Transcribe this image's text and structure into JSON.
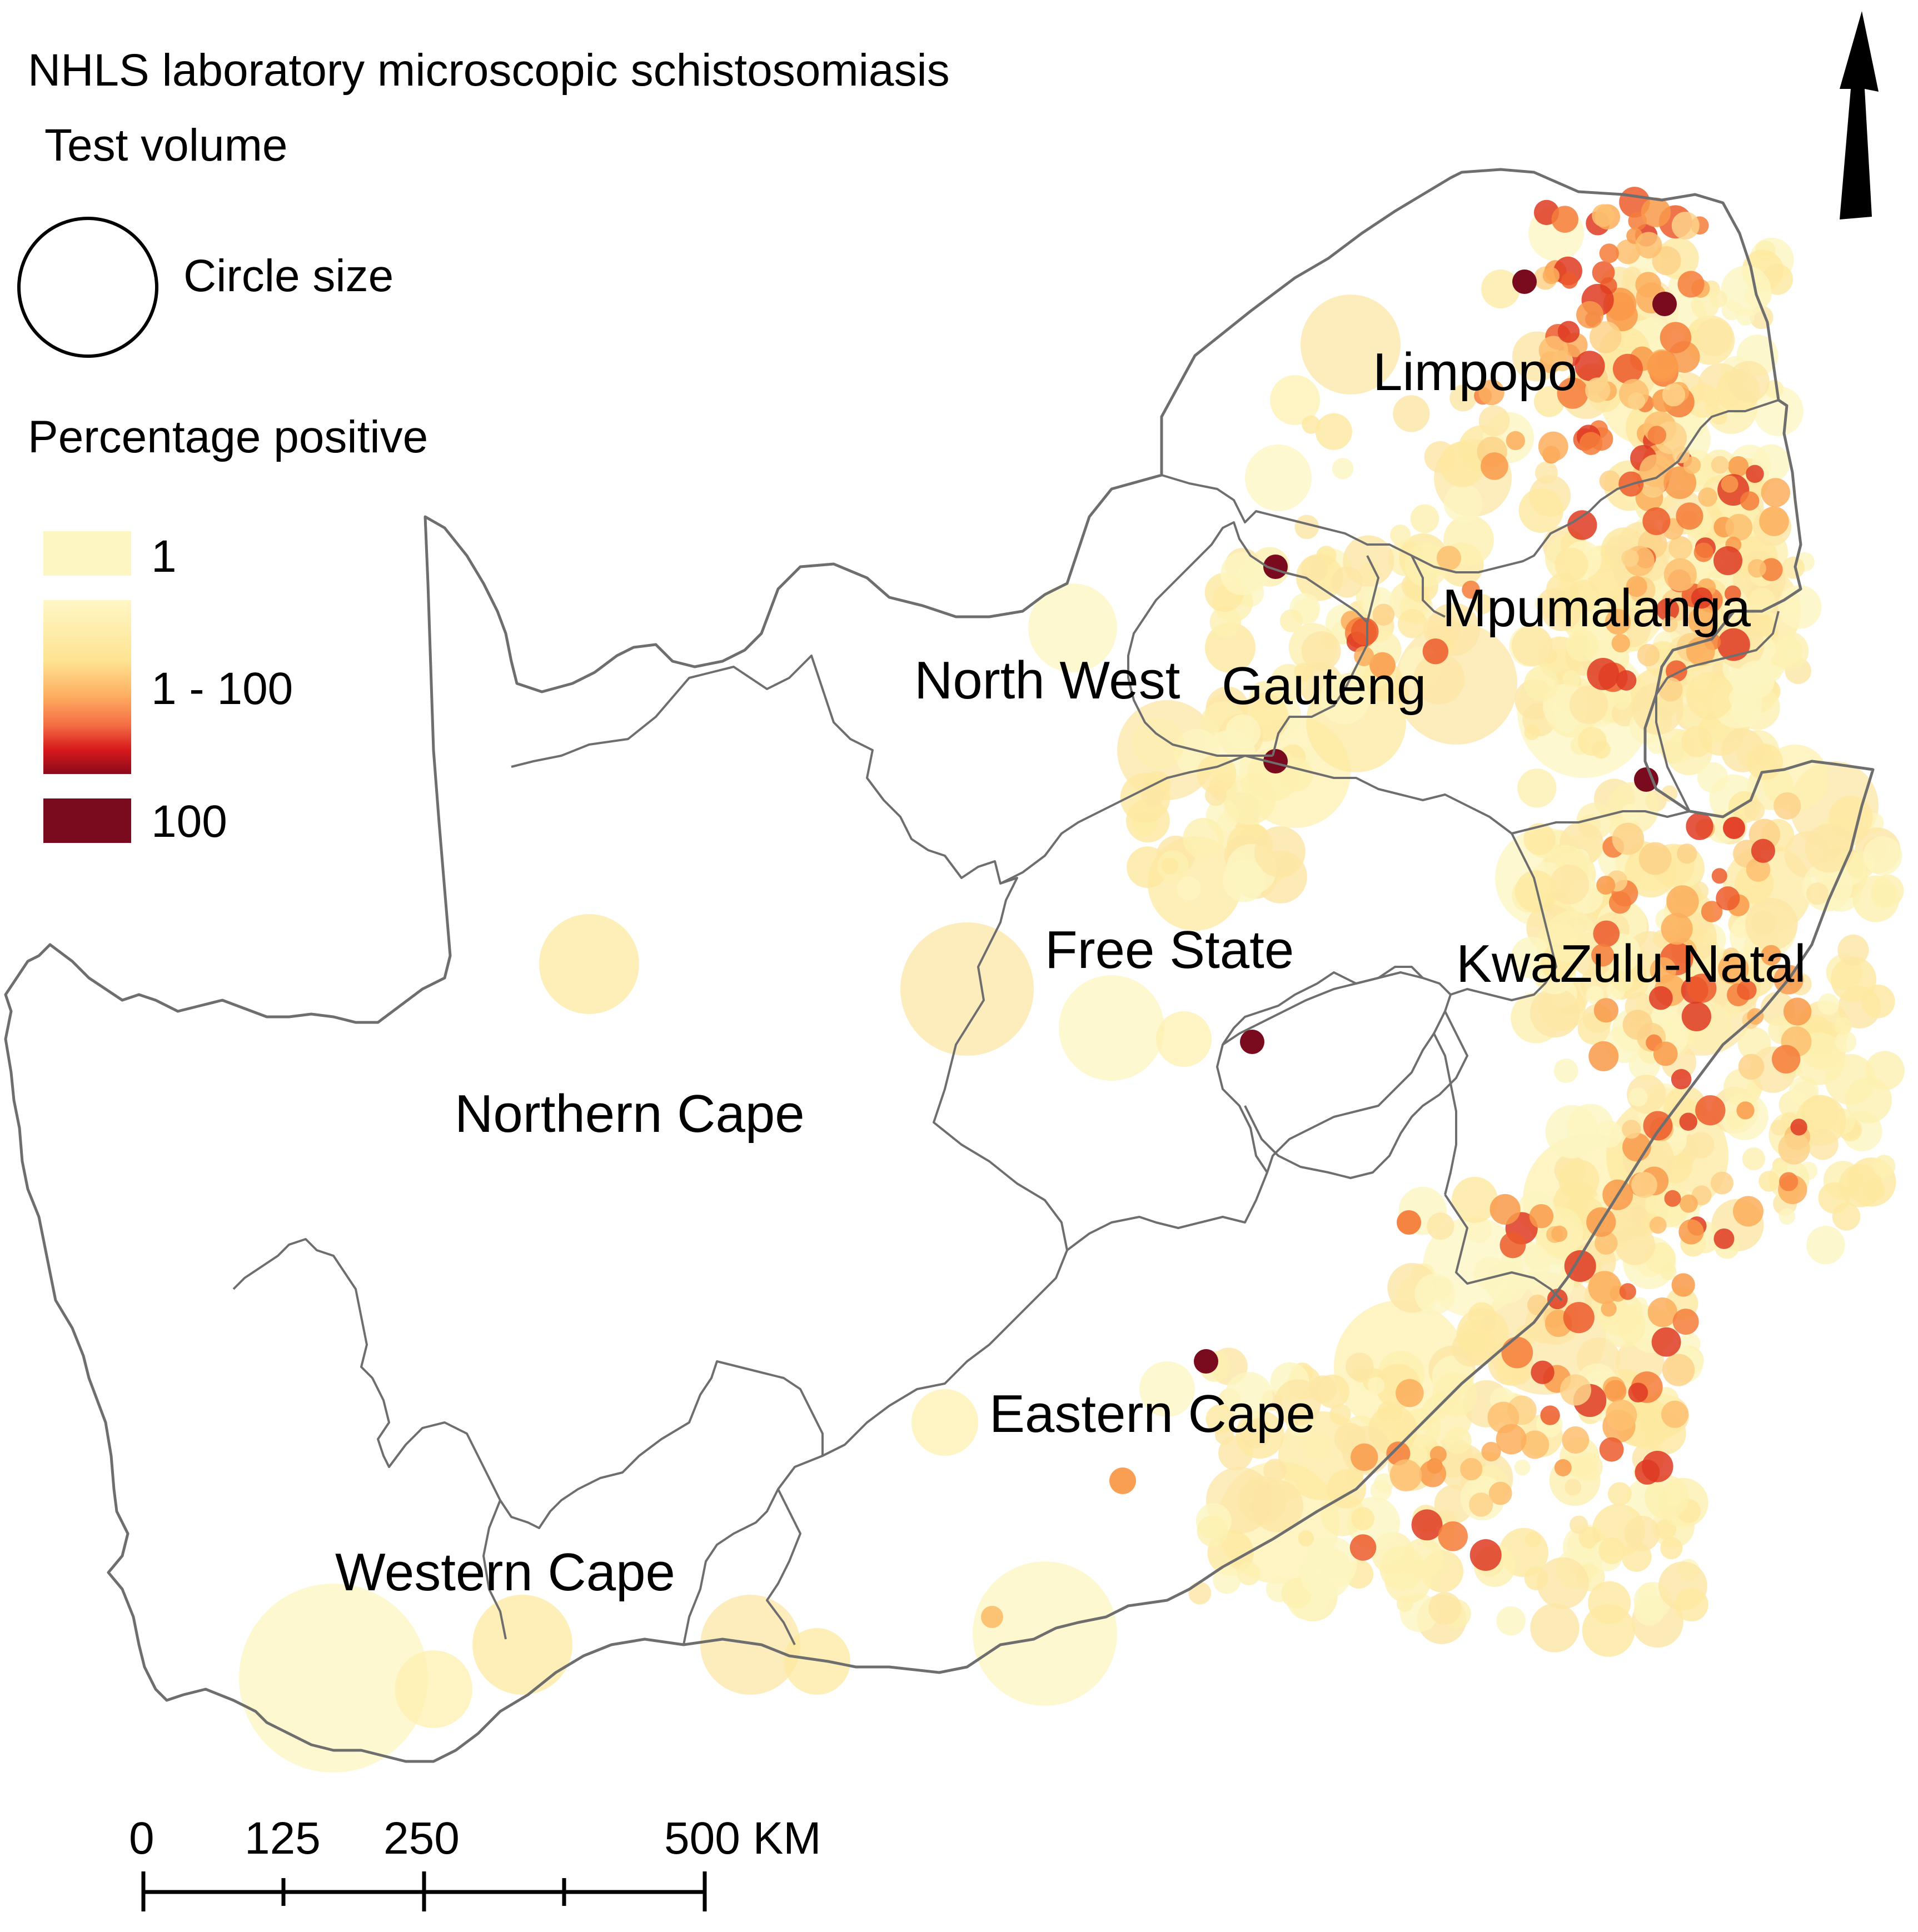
{
  "title": "NHLS laboratory microscopic schistosomiasis",
  "subtitle": "Test volume",
  "circle_size_label": "Circle size",
  "percentage_title": "Percentage positive",
  "legend": [
    {
      "label": "1",
      "color": "#fdf6c3"
    },
    {
      "label": "1 - 100",
      "gradient": [
        "#fff7c6",
        "#fee391",
        "#fdae61",
        "#f46d43",
        "#d7191c",
        "#8b0a1c"
      ]
    },
    {
      "label": "100",
      "color": "#7a0b1f"
    }
  ],
  "provinces": {
    "limpopo": "Limpopo",
    "mpumalanga": "Mpumalanga",
    "north_west": "North West",
    "gauteng": "Gauteng",
    "free_state": "Free State",
    "kwazulu_natal": "KwaZulu-Natal",
    "northern_cape": "Northern Cape",
    "eastern_cape": "Eastern Cape",
    "western_cape": "Western Cape"
  },
  "scale_bar": {
    "ticks": [
      "0",
      "125",
      "250",
      "500 KM"
    ]
  },
  "north_arrow": "north-arrow-icon",
  "colors": {
    "boundary": "#6e6e6e",
    "pct_low": "#fdf6c3",
    "pct_mid": "#fdae61",
    "pct_high": "#7a0b1f"
  }
}
